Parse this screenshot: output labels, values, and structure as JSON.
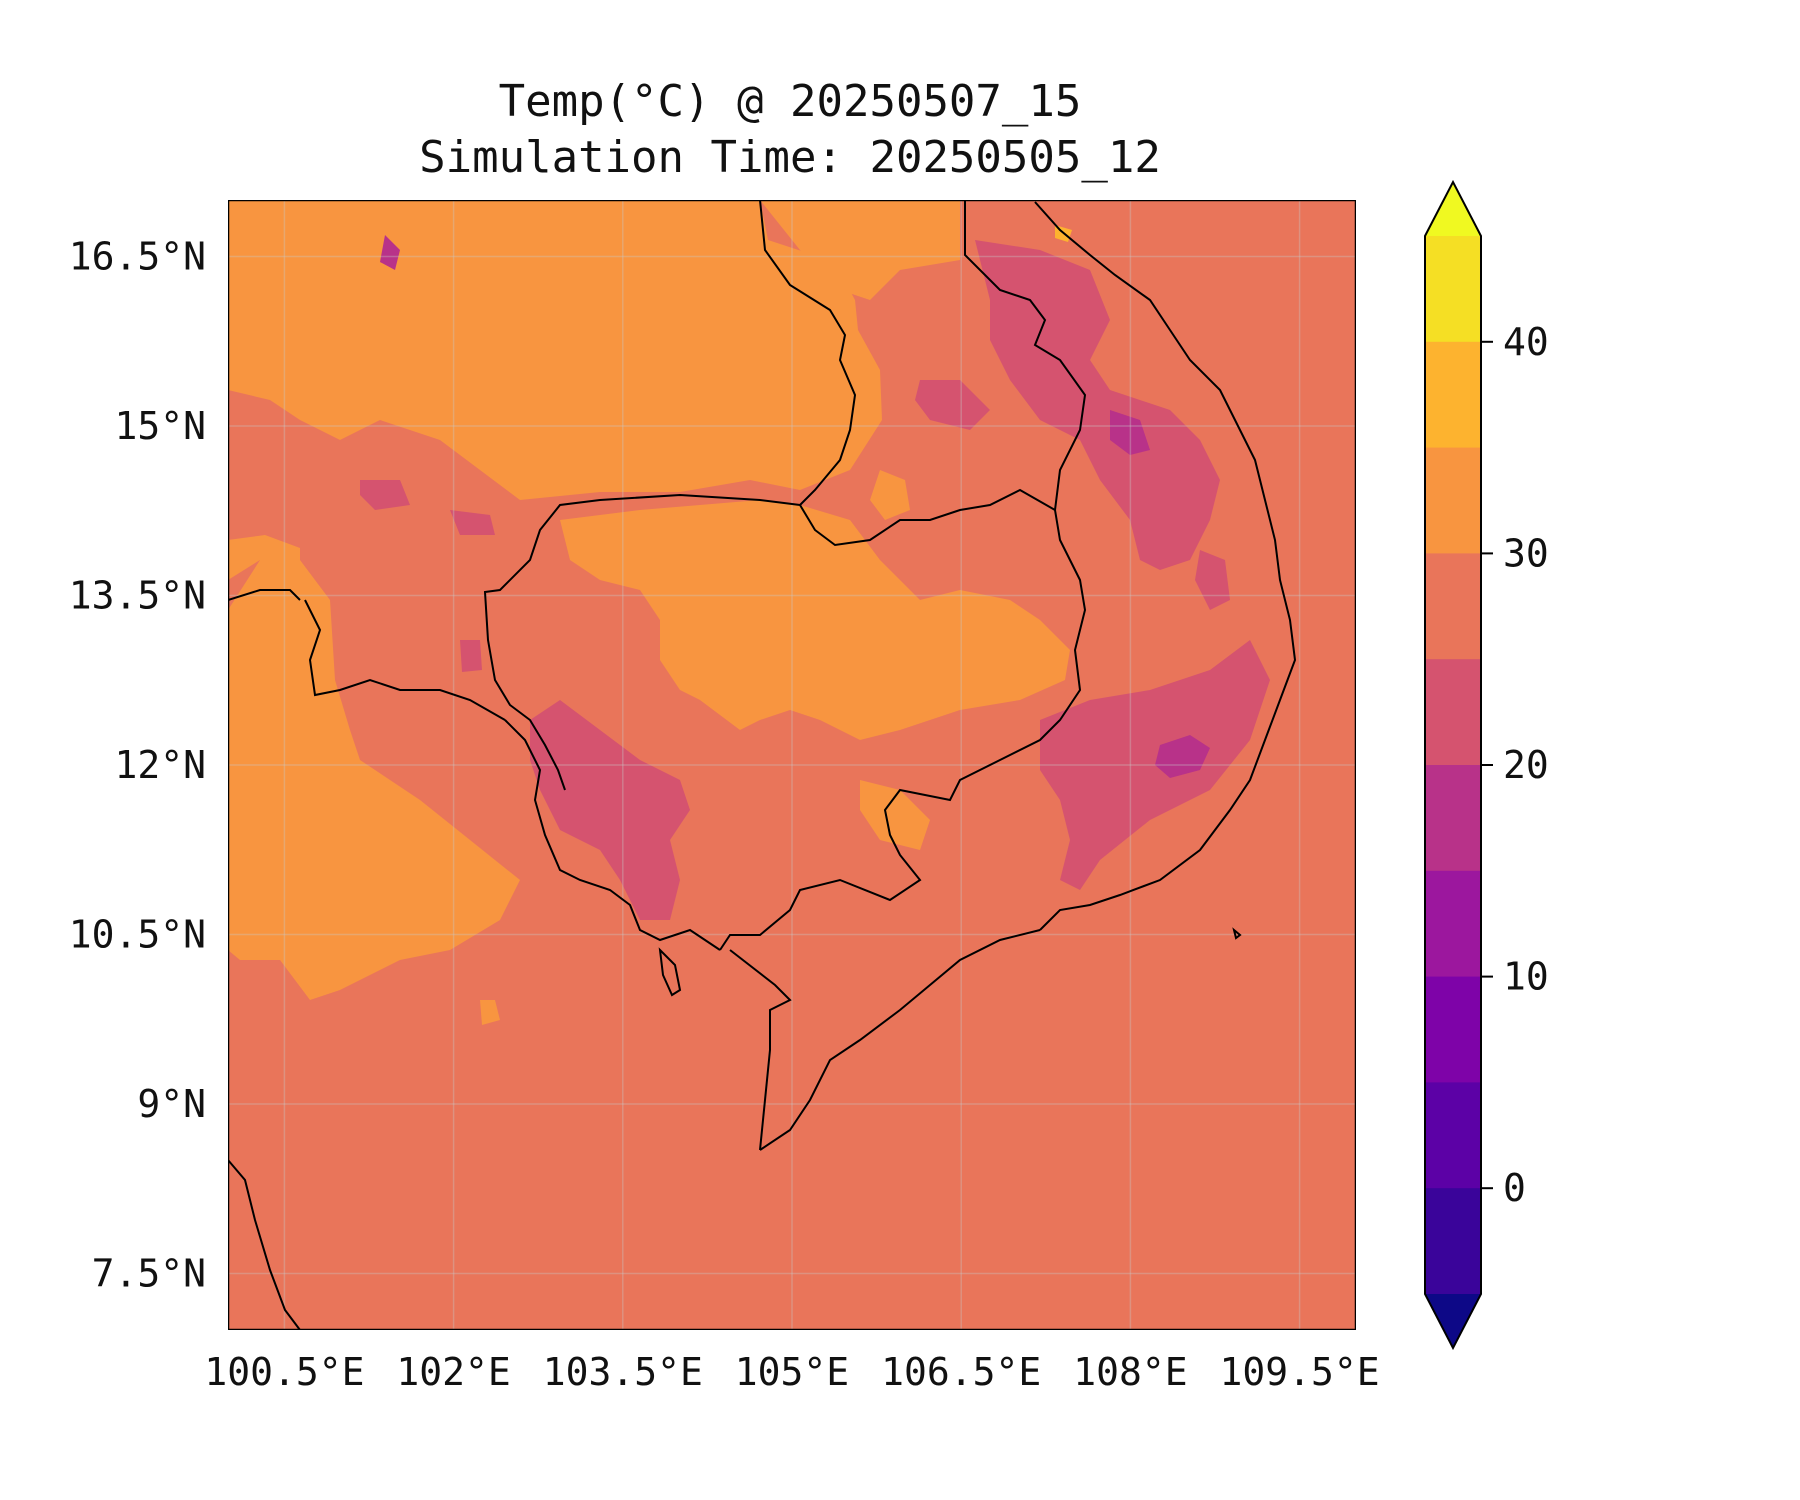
{
  "title": {
    "line1": "Temp(°C) @ 20250507_15",
    "line2": "Simulation Time: 20250505_12"
  },
  "map": {
    "background_color": "#e9755a",
    "lon_ticks": [
      "100.5°E",
      "102°E",
      "103.5°E",
      "105°E",
      "106.5°E",
      "108°E",
      "109.5°E"
    ],
    "lat_ticks": [
      "16.5°N",
      "15°N",
      "13.5°N",
      "12°N",
      "10.5°N",
      "9°N",
      "7.5°N"
    ],
    "gridlines": true
  },
  "colorbar": {
    "ticks": [
      "40",
      "30",
      "20",
      "10",
      "0"
    ],
    "colors_top_to_bottom": [
      "#f0f921",
      "#f5df24",
      "#fdb32f",
      "#f89540",
      "#e9755a",
      "#d5536f",
      "#b83289",
      "#9c179e",
      "#7e03a8",
      "#5c01a6",
      "#3a049a",
      "#0d0887"
    ],
    "extend": "both"
  },
  "chart_data": {
    "type": "heatmap",
    "title": "Temp(°C) @ 20250507_15\nSimulation Time: 20250505_12",
    "xlabel": "",
    "ylabel": "",
    "xlim": [
      100.0,
      110.0
    ],
    "ylim": [
      7.0,
      17.0
    ],
    "x_ticks": [
      100.5,
      102,
      103.5,
      105,
      106.5,
      108,
      109.5
    ],
    "y_ticks": [
      7.5,
      9,
      10.5,
      12,
      13.5,
      15,
      16.5
    ],
    "colorbar_ticks": [
      0,
      10,
      20,
      30,
      40
    ],
    "colorbar_levels": [
      -5,
      0,
      5,
      10,
      15,
      20,
      25,
      30,
      35,
      40,
      45
    ],
    "dominant_value_range": [
      25,
      30
    ],
    "regions": [
      {
        "label": "warm band 30-35",
        "value_range": [
          30,
          35
        ],
        "color": "#f89540"
      },
      {
        "label": "background 25-30",
        "value_range": [
          25,
          30
        ],
        "color": "#e9755a"
      },
      {
        "label": "cool patches 20-25",
        "value_range": [
          20,
          25
        ],
        "color": "#d5536f"
      },
      {
        "label": "cool core 15-20",
        "value_range": [
          15,
          20
        ],
        "color": "#b83289"
      },
      {
        "label": "hot speck 35-40",
        "value_range": [
          35,
          40
        ],
        "color": "#fdb32f"
      }
    ]
  }
}
